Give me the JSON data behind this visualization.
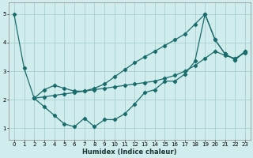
{
  "xlabel": "Humidex (Indice chaleur)",
  "background_color": "#d0ecec",
  "grid_color": "#a8d0d0",
  "line_color": "#1a6b6b",
  "xlim": [
    -0.5,
    23.5
  ],
  "ylim": [
    0.6,
    5.4
  ],
  "yticks": [
    1,
    2,
    3,
    4,
    5
  ],
  "xticks": [
    0,
    1,
    2,
    3,
    4,
    5,
    6,
    7,
    8,
    9,
    10,
    11,
    12,
    13,
    14,
    15,
    16,
    17,
    18,
    19,
    20,
    21,
    22,
    23
  ],
  "series1_x": [
    0,
    1,
    2,
    3,
    4,
    5,
    6,
    7,
    8,
    9,
    10,
    11,
    12,
    13,
    14,
    15,
    16,
    17,
    18,
    19,
    20,
    21,
    22,
    23
  ],
  "series1_y": [
    5.0,
    3.1,
    2.05,
    1.75,
    1.45,
    1.15,
    1.05,
    1.35,
    1.05,
    1.3,
    1.3,
    1.5,
    1.85,
    2.25,
    2.35,
    2.65,
    2.65,
    2.9,
    3.35,
    5.0,
    4.1,
    3.6,
    3.4,
    3.7
  ],
  "series2_x": [
    2,
    3,
    4,
    5,
    6,
    7,
    8,
    9,
    10,
    11,
    12,
    13,
    14,
    15,
    16,
    17,
    18,
    19,
    20,
    21,
    22,
    23
  ],
  "series2_y": [
    2.05,
    2.1,
    2.15,
    2.2,
    2.25,
    2.3,
    2.35,
    2.4,
    2.45,
    2.5,
    2.55,
    2.6,
    2.65,
    2.75,
    2.85,
    3.0,
    3.2,
    3.45,
    3.7,
    3.55,
    3.45,
    3.65
  ],
  "series3_x": [
    2,
    3,
    4,
    5,
    6,
    7,
    8,
    9,
    10,
    11,
    12,
    13,
    14,
    15,
    16,
    17,
    18,
    19,
    20,
    21,
    22,
    23
  ],
  "series3_y": [
    2.05,
    2.35,
    2.5,
    2.4,
    2.3,
    2.3,
    2.4,
    2.55,
    2.8,
    3.05,
    3.3,
    3.5,
    3.7,
    3.9,
    4.1,
    4.3,
    4.65,
    5.0,
    4.1,
    3.6,
    3.4,
    3.7
  ]
}
